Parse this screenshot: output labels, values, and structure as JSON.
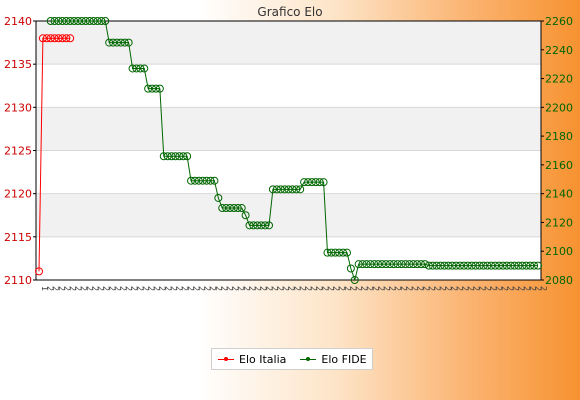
{
  "chart_data": {
    "type": "line",
    "title": "Grafico Elo",
    "left_axis": {
      "ylim": [
        2110,
        2140
      ],
      "ticks": [
        2110,
        2115,
        2120,
        2125,
        2130,
        2135,
        2140
      ],
      "color": "#cc0000"
    },
    "right_axis": {
      "ylim": [
        2080,
        2260
      ],
      "ticks": [
        2080,
        2100,
        2120,
        2140,
        2160,
        2180,
        2200,
        2220,
        2240,
        2260
      ],
      "color": "#006600"
    },
    "grid": true,
    "legend_position": "bottom-center",
    "x_tick_labels": [
      "1",
      "2",
      "2",
      "2",
      "2",
      "2",
      "2",
      "2",
      "2",
      "2",
      "2",
      "2",
      "2",
      "2",
      "2",
      "2",
      "2",
      "2",
      "2",
      "2",
      "2",
      "2",
      "2",
      "2",
      "2",
      "2",
      "2",
      "2",
      "2",
      "2",
      "2",
      "2",
      "2",
      "2",
      "2",
      "2",
      "2",
      "2",
      "2",
      "2",
      "2",
      "2",
      "2",
      "2",
      "2",
      "2",
      "2",
      "2",
      "2",
      "2",
      "2",
      "2",
      "2",
      "2",
      "2",
      "2",
      "2",
      "2",
      "2",
      "2",
      "2",
      "2",
      "2",
      "2",
      "2",
      "2",
      "2",
      "2",
      "2",
      "2",
      "2",
      "2",
      "2",
      "2",
      "2",
      "2",
      "2",
      "2",
      "2",
      "2",
      "2",
      "2",
      "2",
      "2",
      "2",
      "2",
      "2",
      "2",
      "2",
      "2"
    ],
    "series": [
      {
        "name": "Elo Italia",
        "axis": "left",
        "color": "#ff0000",
        "values": [
          2111,
          2138,
          2138,
          2138,
          2138,
          2138,
          2138,
          2138,
          2138
        ]
      },
      {
        "name": "Elo FIDE",
        "axis": "right",
        "color": "#006600",
        "start_index": 3,
        "values": [
          2260,
          2260,
          2260,
          2260,
          2260,
          2260,
          2260,
          2260,
          2260,
          2260,
          2260,
          2260,
          2260,
          2260,
          2260,
          2245,
          2245,
          2245,
          2245,
          2245,
          2245,
          2227,
          2227,
          2227,
          2227,
          2213,
          2213,
          2213,
          2213,
          2166,
          2166,
          2166,
          2166,
          2166,
          2166,
          2166,
          2149,
          2149,
          2149,
          2149,
          2149,
          2149,
          2149,
          2137,
          2130,
          2130,
          2130,
          2130,
          2130,
          2130,
          2125,
          2118,
          2118,
          2118,
          2118,
          2118,
          2118,
          2143,
          2143,
          2143,
          2143,
          2143,
          2143,
          2143,
          2143,
          2148,
          2148,
          2148,
          2148,
          2148,
          2148,
          2099,
          2099,
          2099,
          2099,
          2099,
          2099,
          2088,
          2080,
          2091,
          2091,
          2091,
          2091,
          2091,
          2091,
          2091,
          2091,
          2091,
          2091,
          2091,
          2091,
          2091,
          2091,
          2091,
          2091,
          2091,
          2091,
          2090,
          2090,
          2090,
          2090,
          2090,
          2090,
          2090,
          2090,
          2090,
          2090,
          2090,
          2090,
          2090,
          2090,
          2090,
          2090,
          2090,
          2090,
          2090,
          2090,
          2090,
          2090,
          2090,
          2090,
          2090,
          2090,
          2090,
          2090,
          2090
        ]
      }
    ]
  },
  "legend": {
    "items": [
      "Elo Italia",
      "Elo FIDE"
    ]
  }
}
